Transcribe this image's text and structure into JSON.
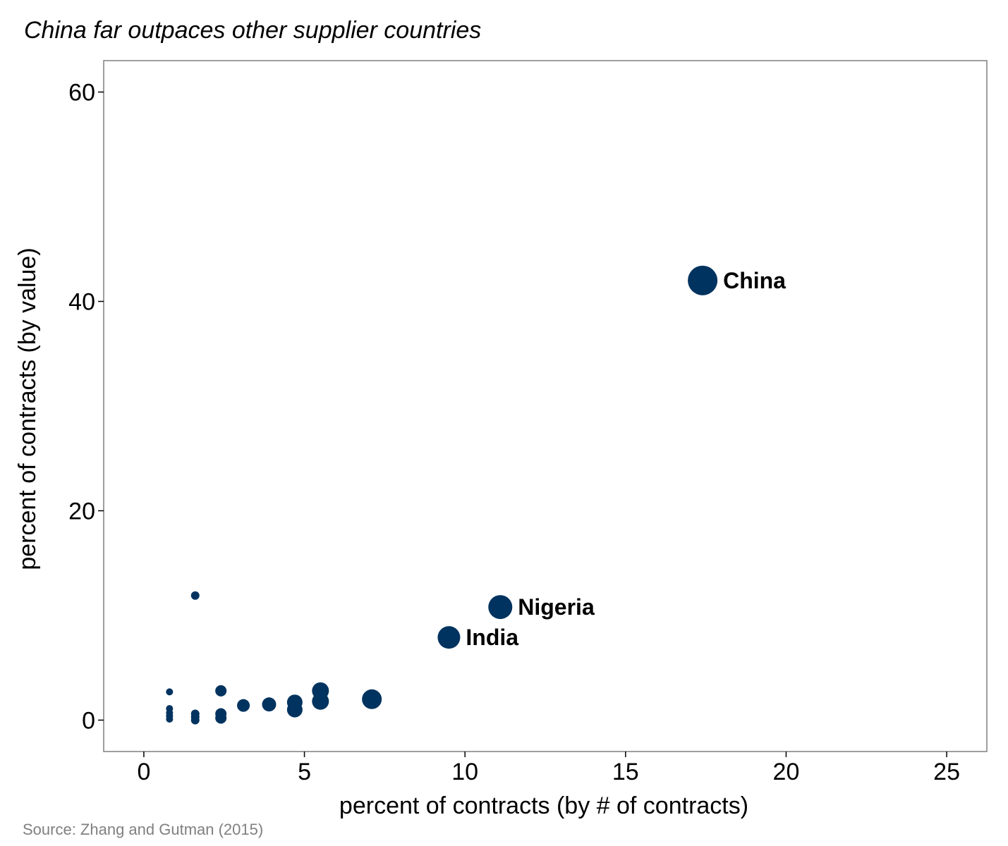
{
  "chart_data": {
    "type": "scatter",
    "title": "China far outpaces other supplier countries",
    "xlabel": "percent of contracts (by # of contracts)",
    "ylabel": "percent of contracts (by value)",
    "source": "Source: Zhang and Gutman (2015)",
    "xlim": [
      -1.25,
      26.25
    ],
    "ylim": [
      -3.0,
      63.0
    ],
    "xticks": [
      0,
      5,
      10,
      15,
      20,
      25
    ],
    "yticks": [
      0,
      20,
      40,
      60
    ],
    "grid": false,
    "point_color": "#00335f",
    "points": [
      {
        "x": 17.4,
        "y": 42.0,
        "size": 21,
        "label": "China"
      },
      {
        "x": 11.1,
        "y": 10.8,
        "size": 17,
        "label": "Nigeria"
      },
      {
        "x": 9.5,
        "y": 7.9,
        "size": 16,
        "label": "India"
      },
      {
        "x": 7.1,
        "y": 2.0,
        "size": 14,
        "label": ""
      },
      {
        "x": 5.5,
        "y": 2.8,
        "size": 12,
        "label": ""
      },
      {
        "x": 5.5,
        "y": 1.8,
        "size": 12,
        "label": ""
      },
      {
        "x": 4.7,
        "y": 1.7,
        "size": 11,
        "label": ""
      },
      {
        "x": 4.7,
        "y": 1.0,
        "size": 11,
        "label": ""
      },
      {
        "x": 3.9,
        "y": 1.5,
        "size": 10,
        "label": ""
      },
      {
        "x": 3.1,
        "y": 1.4,
        "size": 9,
        "label": ""
      },
      {
        "x": 2.4,
        "y": 2.8,
        "size": 8,
        "label": ""
      },
      {
        "x": 2.4,
        "y": 0.6,
        "size": 8,
        "label": ""
      },
      {
        "x": 2.4,
        "y": 0.2,
        "size": 8,
        "label": ""
      },
      {
        "x": 1.6,
        "y": 11.9,
        "size": 6,
        "label": ""
      },
      {
        "x": 1.6,
        "y": 0.6,
        "size": 6,
        "label": ""
      },
      {
        "x": 1.6,
        "y": 0.3,
        "size": 6,
        "label": ""
      },
      {
        "x": 1.6,
        "y": 0.0,
        "size": 6,
        "label": ""
      },
      {
        "x": 0.8,
        "y": 2.7,
        "size": 5,
        "label": ""
      },
      {
        "x": 0.8,
        "y": 1.1,
        "size": 5,
        "label": ""
      },
      {
        "x": 0.8,
        "y": 0.7,
        "size": 5,
        "label": ""
      },
      {
        "x": 0.8,
        "y": 0.4,
        "size": 5,
        "label": ""
      },
      {
        "x": 0.8,
        "y": 0.1,
        "size": 5,
        "label": ""
      }
    ]
  }
}
